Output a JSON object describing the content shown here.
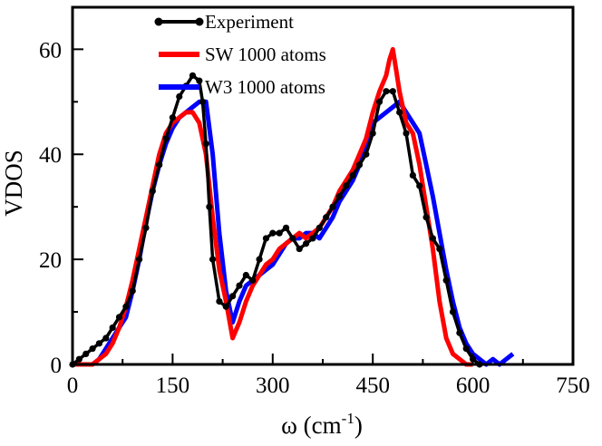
{
  "chart_data": {
    "type": "line",
    "title": "",
    "xlabel": "ω (cm",
    "xlabel_sup": "-1",
    "xlabel_close": ")",
    "ylabel": "VDOS",
    "xlim": [
      0,
      750
    ],
    "ylim": [
      0,
      68
    ],
    "xticks": [
      0,
      150,
      300,
      450,
      600,
      750
    ],
    "yticks": [
      0,
      20,
      40,
      60
    ],
    "xtick_labels": [
      "0",
      "150",
      "300",
      "450",
      "600",
      "750"
    ],
    "ytick_labels": [
      "0",
      "20",
      "40",
      "60"
    ],
    "legend_position": "top-center",
    "series": [
      {
        "name": "Experiment",
        "color": "#000000",
        "markers": true,
        "x": [
          0,
          10,
          20,
          30,
          40,
          50,
          60,
          70,
          80,
          90,
          100,
          110,
          120,
          130,
          140,
          150,
          160,
          170,
          180,
          190,
          195,
          200,
          205,
          210,
          220,
          230,
          240,
          250,
          260,
          270,
          280,
          290,
          300,
          310,
          320,
          330,
          340,
          350,
          360,
          370,
          380,
          390,
          400,
          410,
          420,
          430,
          440,
          450,
          460,
          470,
          480,
          490,
          500,
          510,
          520,
          530,
          540,
          550,
          560,
          570,
          580,
          590,
          600,
          610
        ],
        "y": [
          0,
          1,
          2,
          3,
          4,
          5,
          7,
          9,
          11,
          14,
          20,
          26,
          33,
          38,
          43,
          47,
          51,
          53,
          55,
          54,
          50,
          42,
          30,
          20,
          12,
          11,
          13,
          15,
          17,
          16,
          20,
          24,
          25,
          25,
          26,
          24,
          22,
          23,
          24,
          26,
          28,
          30,
          32,
          34,
          36,
          38,
          40,
          44,
          50,
          52,
          52,
          48,
          44,
          36,
          34,
          28,
          24,
          22,
          16,
          10,
          6,
          3,
          1,
          0
        ]
      },
      {
        "name": "SW 1000 atoms",
        "color": "#ff0000",
        "markers": false,
        "x": [
          0,
          10,
          20,
          30,
          40,
          50,
          60,
          70,
          80,
          90,
          100,
          110,
          120,
          130,
          140,
          150,
          160,
          170,
          180,
          190,
          200,
          210,
          220,
          230,
          240,
          250,
          260,
          270,
          280,
          290,
          300,
          310,
          320,
          330,
          340,
          350,
          360,
          370,
          380,
          390,
          400,
          410,
          420,
          430,
          440,
          450,
          460,
          470,
          475,
          480,
          485,
          490,
          500,
          510,
          520,
          530,
          540,
          550,
          560,
          570,
          580,
          590,
          600
        ],
        "y": [
          0,
          0,
          0,
          0,
          1,
          2,
          4,
          7,
          11,
          16,
          22,
          28,
          34,
          40,
          44,
          46,
          47,
          48,
          48,
          46,
          40,
          28,
          18,
          12,
          5,
          8,
          12,
          15,
          17,
          19,
          20,
          22,
          23,
          24,
          25,
          24,
          25,
          26,
          28,
          30,
          33,
          35,
          37,
          40,
          43,
          48,
          52,
          55,
          58,
          60,
          56,
          52,
          46,
          44,
          38,
          30,
          22,
          12,
          5,
          2,
          1,
          0,
          0
        ]
      },
      {
        "name": "W3 1000 atoms",
        "color": "#0000ff",
        "markers": false,
        "x": [
          0,
          10,
          20,
          30,
          40,
          50,
          60,
          70,
          80,
          90,
          100,
          110,
          120,
          130,
          140,
          150,
          160,
          170,
          180,
          190,
          200,
          210,
          220,
          230,
          240,
          250,
          260,
          270,
          280,
          290,
          300,
          310,
          320,
          330,
          340,
          350,
          360,
          370,
          380,
          390,
          400,
          410,
          420,
          430,
          440,
          450,
          460,
          470,
          480,
          490,
          500,
          510,
          520,
          530,
          540,
          550,
          560,
          570,
          580,
          590,
          600,
          610,
          620,
          630,
          640,
          650,
          660
        ],
        "y": [
          0,
          0,
          0,
          0,
          1,
          3,
          5,
          7,
          9,
          14,
          20,
          27,
          33,
          38,
          42,
          45,
          47,
          48,
          49,
          50,
          50,
          40,
          25,
          14,
          8,
          12,
          15,
          16,
          17,
          18,
          19,
          21,
          23,
          24,
          24,
          25,
          25,
          24,
          26,
          28,
          31,
          33,
          35,
          38,
          42,
          46,
          47,
          48,
          49,
          50,
          48,
          46,
          44,
          38,
          32,
          25,
          18,
          12,
          7,
          4,
          2,
          1,
          0,
          1,
          0,
          1,
          2
        ]
      }
    ]
  }
}
